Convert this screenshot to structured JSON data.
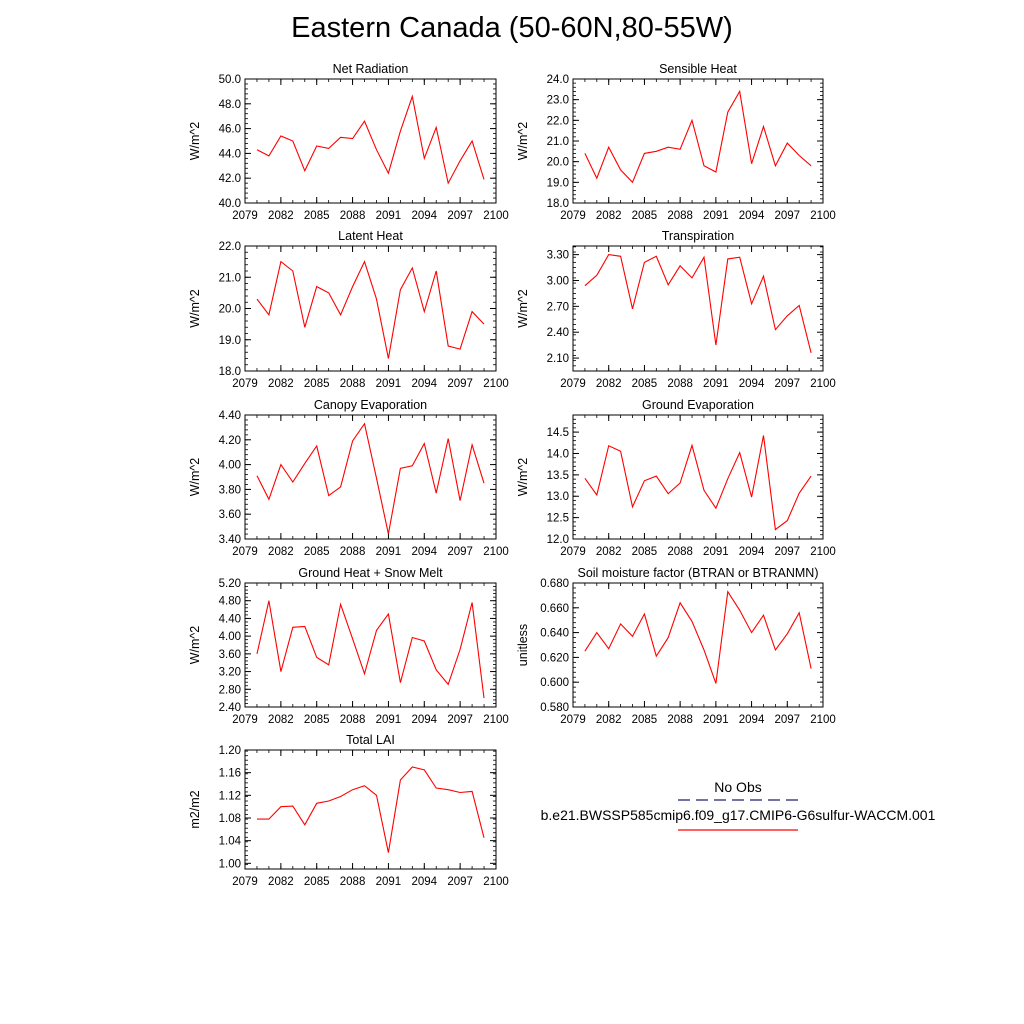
{
  "title": "Eastern Canada (50-60N,80-55W)",
  "chart_data": [
    {
      "type": "line",
      "title": "Net Radiation",
      "ylabel": "W/m^2",
      "ylim": [
        40.0,
        50.0
      ],
      "yticks": [
        "40.0",
        "42.0",
        "44.0",
        "46.0",
        "48.0",
        "50.0"
      ],
      "yticks_values": [
        40,
        42,
        44,
        46,
        48,
        50
      ],
      "xlim": [
        2079,
        2100
      ],
      "xticks": [
        "2079",
        "2082",
        "2085",
        "2088",
        "2091",
        "2094",
        "2097",
        "2100"
      ],
      "xticks_values": [
        2079,
        2082,
        2085,
        2088,
        2091,
        2094,
        2097,
        2100
      ],
      "x": [
        2080,
        2081,
        2082,
        2083,
        2084,
        2085,
        2086,
        2087,
        2088,
        2089,
        2090,
        2091,
        2092,
        2093,
        2094,
        2095,
        2096,
        2097,
        2098,
        2099
      ],
      "series": [
        {
          "values": [
            44.3,
            43.8,
            45.4,
            45.0,
            42.6,
            44.6,
            44.4,
            45.3,
            45.2,
            46.6,
            44.3,
            42.4,
            45.8,
            48.6,
            43.6,
            46.1,
            41.6,
            43.4,
            45.0,
            41.9
          ],
          "color": "#ff0000"
        }
      ]
    },
    {
      "type": "line",
      "title": "Sensible Heat",
      "ylabel": "W/m^2",
      "ylim": [
        18.0,
        24.0
      ],
      "yticks": [
        "18.0",
        "19.0",
        "20.0",
        "21.0",
        "22.0",
        "23.0",
        "24.0"
      ],
      "yticks_values": [
        18,
        19,
        20,
        21,
        22,
        23,
        24
      ],
      "xlim": [
        2079,
        2100
      ],
      "xticks": [
        "2079",
        "2082",
        "2085",
        "2088",
        "2091",
        "2094",
        "2097",
        "2100"
      ],
      "xticks_values": [
        2079,
        2082,
        2085,
        2088,
        2091,
        2094,
        2097,
        2100
      ],
      "x": [
        2080,
        2081,
        2082,
        2083,
        2084,
        2085,
        2086,
        2087,
        2088,
        2089,
        2090,
        2091,
        2092,
        2093,
        2094,
        2095,
        2096,
        2097,
        2098,
        2099
      ],
      "series": [
        {
          "values": [
            20.4,
            19.2,
            20.7,
            19.6,
            19.0,
            20.4,
            20.5,
            20.7,
            20.6,
            22.0,
            19.8,
            19.5,
            22.4,
            23.4,
            19.9,
            21.7,
            19.8,
            20.9,
            20.3,
            19.8
          ],
          "color": "#ff0000"
        }
      ]
    },
    {
      "type": "line",
      "title": "Latent Heat",
      "ylabel": "W/m^2",
      "ylim": [
        18.0,
        22.0
      ],
      "yticks": [
        "18.0",
        "19.0",
        "20.0",
        "21.0",
        "22.0"
      ],
      "yticks_values": [
        18,
        19,
        20,
        21,
        22
      ],
      "xlim": [
        2079,
        2100
      ],
      "xticks": [
        "2079",
        "2082",
        "2085",
        "2088",
        "2091",
        "2094",
        "2097",
        "2100"
      ],
      "xticks_values": [
        2079,
        2082,
        2085,
        2088,
        2091,
        2094,
        2097,
        2100
      ],
      "x": [
        2080,
        2081,
        2082,
        2083,
        2084,
        2085,
        2086,
        2087,
        2088,
        2089,
        2090,
        2091,
        2092,
        2093,
        2094,
        2095,
        2096,
        2097,
        2098,
        2099
      ],
      "series": [
        {
          "values": [
            20.3,
            19.8,
            21.5,
            21.2,
            19.4,
            20.7,
            20.5,
            19.8,
            20.7,
            21.5,
            20.3,
            18.4,
            20.6,
            21.3,
            19.9,
            21.2,
            18.8,
            18.7,
            19.9,
            19.5
          ],
          "color": "#ff0000"
        }
      ]
    },
    {
      "type": "line",
      "title": "Transpiration",
      "ylabel": "W/m^2",
      "ylim": [
        1.95,
        3.4
      ],
      "yticks": [
        "2.10",
        "2.40",
        "2.70",
        "3.00",
        "3.30"
      ],
      "yticks_values": [
        2.1,
        2.4,
        2.7,
        3.0,
        3.3
      ],
      "xlim": [
        2079,
        2100
      ],
      "xticks": [
        "2079",
        "2082",
        "2085",
        "2088",
        "2091",
        "2094",
        "2097",
        "2100"
      ],
      "xticks_values": [
        2079,
        2082,
        2085,
        2088,
        2091,
        2094,
        2097,
        2100
      ],
      "x": [
        2080,
        2081,
        2082,
        2083,
        2084,
        2085,
        2086,
        2087,
        2088,
        2089,
        2090,
        2091,
        2092,
        2093,
        2094,
        2095,
        2096,
        2097,
        2098,
        2099
      ],
      "series": [
        {
          "values": [
            2.94,
            3.06,
            3.3,
            3.28,
            2.67,
            3.21,
            3.28,
            2.95,
            3.17,
            3.03,
            3.27,
            2.25,
            3.25,
            3.27,
            2.73,
            3.05,
            2.43,
            2.59,
            2.71,
            2.16
          ],
          "color": "#ff0000"
        }
      ]
    },
    {
      "type": "line",
      "title": "Canopy Evaporation",
      "ylabel": "W/m^2",
      "ylim": [
        3.4,
        4.4
      ],
      "yticks": [
        "3.40",
        "3.60",
        "3.80",
        "4.00",
        "4.20",
        "4.40"
      ],
      "yticks_values": [
        3.4,
        3.6,
        3.8,
        4.0,
        4.2,
        4.4
      ],
      "xlim": [
        2079,
        2100
      ],
      "xticks": [
        "2079",
        "2082",
        "2085",
        "2088",
        "2091",
        "2094",
        "2097",
        "2100"
      ],
      "xticks_values": [
        2079,
        2082,
        2085,
        2088,
        2091,
        2094,
        2097,
        2100
      ],
      "x": [
        2080,
        2081,
        2082,
        2083,
        2084,
        2085,
        2086,
        2087,
        2088,
        2089,
        2090,
        2091,
        2092,
        2093,
        2094,
        2095,
        2096,
        2097,
        2098,
        2099
      ],
      "series": [
        {
          "values": [
            3.91,
            3.72,
            4.0,
            3.86,
            4.01,
            4.15,
            3.75,
            3.82,
            4.19,
            4.33,
            3.89,
            3.44,
            3.97,
            3.99,
            4.17,
            3.77,
            4.21,
            3.71,
            4.16,
            3.85
          ],
          "color": "#ff0000"
        }
      ]
    },
    {
      "type": "line",
      "title": "Ground Evaporation",
      "ylabel": "W/m^2",
      "ylim": [
        12.0,
        14.9
      ],
      "yticks": [
        "12.0",
        "12.5",
        "13.0",
        "13.5",
        "14.0",
        "14.5"
      ],
      "yticks_values": [
        12.0,
        12.5,
        13.0,
        13.5,
        14.0,
        14.5
      ],
      "xlim": [
        2079,
        2100
      ],
      "xticks": [
        "2079",
        "2082",
        "2085",
        "2088",
        "2091",
        "2094",
        "2097",
        "2100"
      ],
      "xticks_values": [
        2079,
        2082,
        2085,
        2088,
        2091,
        2094,
        2097,
        2100
      ],
      "x": [
        2080,
        2081,
        2082,
        2083,
        2084,
        2085,
        2086,
        2087,
        2088,
        2089,
        2090,
        2091,
        2092,
        2093,
        2094,
        2095,
        2096,
        2097,
        2098,
        2099
      ],
      "series": [
        {
          "values": [
            13.42,
            13.03,
            14.18,
            14.05,
            12.75,
            13.36,
            13.47,
            13.06,
            13.31,
            14.19,
            13.14,
            12.72,
            13.41,
            14.02,
            12.98,
            14.42,
            12.22,
            12.43,
            13.07,
            13.47
          ],
          "color": "#ff0000"
        }
      ]
    },
    {
      "type": "line",
      "title": "Ground Heat + Snow Melt",
      "ylabel": "W/m^2",
      "ylim": [
        2.4,
        5.2
      ],
      "yticks": [
        "2.40",
        "2.80",
        "3.20",
        "3.60",
        "4.00",
        "4.40",
        "4.80",
        "5.20"
      ],
      "yticks_values": [
        2.4,
        2.8,
        3.2,
        3.6,
        4.0,
        4.4,
        4.8,
        5.2
      ],
      "xlim": [
        2079,
        2100
      ],
      "xticks": [
        "2079",
        "2082",
        "2085",
        "2088",
        "2091",
        "2094",
        "2097",
        "2100"
      ],
      "xticks_values": [
        2079,
        2082,
        2085,
        2088,
        2091,
        2094,
        2097,
        2100
      ],
      "x": [
        2080,
        2081,
        2082,
        2083,
        2084,
        2085,
        2086,
        2087,
        2088,
        2089,
        2090,
        2091,
        2092,
        2093,
        2094,
        2095,
        2096,
        2097,
        2098,
        2099
      ],
      "series": [
        {
          "values": [
            3.6,
            4.8,
            3.2,
            4.2,
            4.22,
            3.52,
            3.35,
            4.72,
            3.94,
            3.15,
            4.13,
            4.5,
            2.95,
            3.97,
            3.89,
            3.24,
            2.91,
            3.7,
            4.76,
            2.6
          ],
          "color": "#ff0000"
        }
      ]
    },
    {
      "type": "line",
      "title": "Soil moisture factor (BTRAN or BTRANMN)",
      "ylabel": "unitless",
      "ylim": [
        0.58,
        0.68
      ],
      "yticks": [
        "0.580",
        "0.600",
        "0.620",
        "0.640",
        "0.660",
        "0.680"
      ],
      "yticks_values": [
        0.58,
        0.6,
        0.62,
        0.64,
        0.66,
        0.68
      ],
      "xlim": [
        2079,
        2100
      ],
      "xticks": [
        "2079",
        "2082",
        "2085",
        "2088",
        "2091",
        "2094",
        "2097",
        "2100"
      ],
      "xticks_values": [
        2079,
        2082,
        2085,
        2088,
        2091,
        2094,
        2097,
        2100
      ],
      "x": [
        2080,
        2081,
        2082,
        2083,
        2084,
        2085,
        2086,
        2087,
        2088,
        2089,
        2090,
        2091,
        2092,
        2093,
        2094,
        2095,
        2096,
        2097,
        2098,
        2099
      ],
      "series": [
        {
          "values": [
            0.625,
            0.64,
            0.627,
            0.647,
            0.637,
            0.655,
            0.621,
            0.636,
            0.664,
            0.649,
            0.626,
            0.599,
            0.673,
            0.658,
            0.64,
            0.654,
            0.626,
            0.639,
            0.656,
            0.611
          ],
          "color": "#ff0000"
        }
      ]
    },
    {
      "type": "line",
      "title": "Total LAI",
      "ylabel": "m2/m2",
      "ylim": [
        0.99,
        1.2
      ],
      "yticks": [
        "1.00",
        "1.04",
        "1.08",
        "1.12",
        "1.16",
        "1.20"
      ],
      "yticks_values": [
        1.0,
        1.04,
        1.08,
        1.12,
        1.16,
        1.2
      ],
      "xlim": [
        2079,
        2100
      ],
      "xticks": [
        "2079",
        "2082",
        "2085",
        "2088",
        "2091",
        "2094",
        "2097",
        "2100"
      ],
      "xticks_values": [
        2079,
        2082,
        2085,
        2088,
        2091,
        2094,
        2097,
        2100
      ],
      "x": [
        2080,
        2081,
        2082,
        2083,
        2084,
        2085,
        2086,
        2087,
        2088,
        2089,
        2090,
        2091,
        2092,
        2093,
        2094,
        2095,
        2096,
        2097,
        2098,
        2099
      ],
      "series": [
        {
          "values": [
            1.078,
            1.078,
            1.1,
            1.101,
            1.068,
            1.106,
            1.11,
            1.118,
            1.13,
            1.137,
            1.12,
            1.019,
            1.147,
            1.17,
            1.165,
            1.133,
            1.13,
            1.125,
            1.127,
            1.045
          ],
          "color": "#ff0000"
        }
      ]
    }
  ],
  "legend": {
    "items": [
      {
        "label": "No Obs",
        "color": "#1f1f6e",
        "style": "dashed"
      },
      {
        "label": "b.e21.BWSSP585cmip6.f09_g17.CMIP6-G6sulfur-WACCM.001",
        "color": "#ff0000",
        "style": "solid"
      }
    ]
  }
}
